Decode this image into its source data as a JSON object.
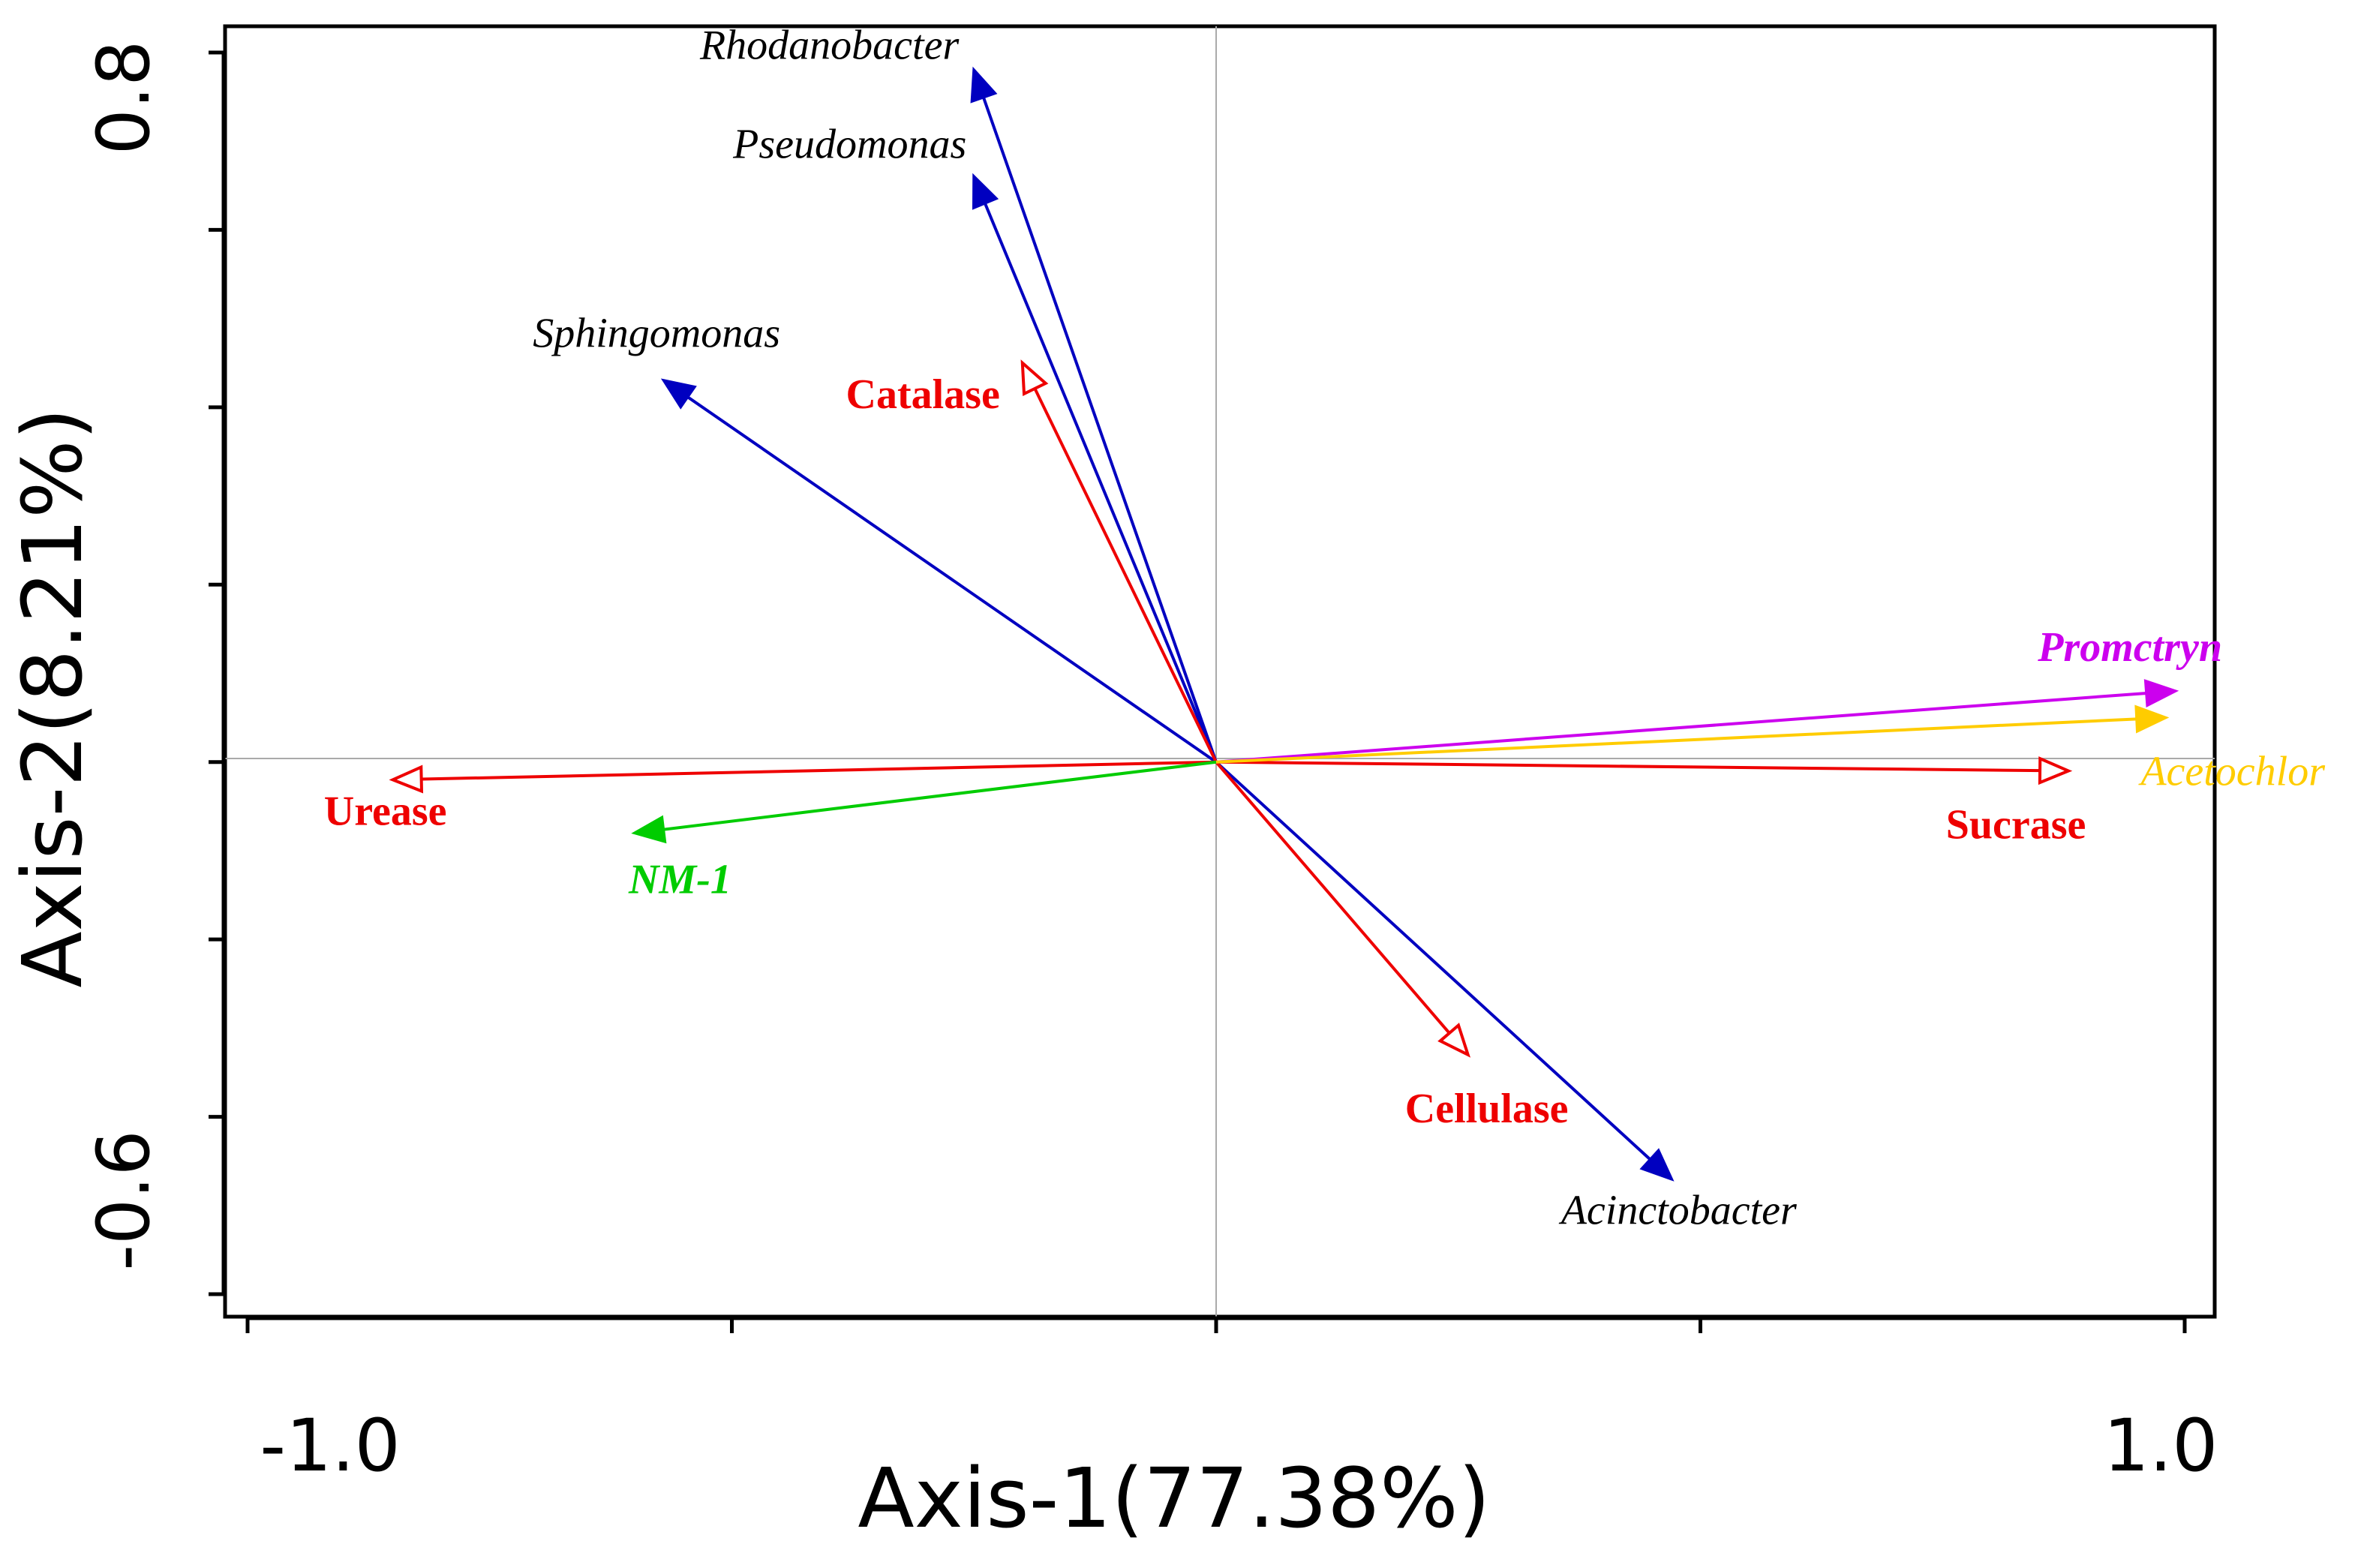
{
  "chart_data": {
    "type": "biplot",
    "xlabel": "Axis-1(77.38%)",
    "ylabel": "Axis-2(8.21%)",
    "xlim": [
      -1.0,
      1.0
    ],
    "ylim": [
      -0.6,
      0.8
    ],
    "x_tick_labels": [
      "-1.0",
      "1.0"
    ],
    "y_tick_labels": [
      "0.8",
      "-0.6"
    ],
    "x_ticks": [
      -1.0,
      -0.5,
      0.0,
      0.5,
      1.0
    ],
    "y_ticks": [
      -0.6,
      -0.4,
      -0.2,
      0.0,
      0.2,
      0.4,
      0.6,
      0.8
    ],
    "vectors": [
      {
        "name": "Rhodanobacter",
        "x": -0.25,
        "y": 0.78,
        "color": "#0000c0",
        "head": "filled",
        "label_style": "italic",
        "label_color": "#000000"
      },
      {
        "name": "Pseudomonas",
        "x": -0.25,
        "y": 0.66,
        "color": "#0000c0",
        "head": "filled",
        "label_style": "italic",
        "label_color": "#000000"
      },
      {
        "name": "Sphingomonas",
        "x": -0.57,
        "y": 0.43,
        "color": "#0000c0",
        "head": "filled",
        "label_style": "italic",
        "label_color": "#000000"
      },
      {
        "name": "Acinctobacter",
        "x": 0.47,
        "y": -0.47,
        "color": "#0000c0",
        "head": "filled",
        "label_style": "italic",
        "label_color": "#000000"
      },
      {
        "name": "Catalase",
        "x": -0.2,
        "y": 0.45,
        "color": "#ee0000",
        "head": "open",
        "label_style": "bold",
        "label_color": "#ee0000"
      },
      {
        "name": "Urease",
        "x": -0.85,
        "y": -0.02,
        "color": "#ee0000",
        "head": "open",
        "label_style": "bold",
        "label_color": "#ee0000"
      },
      {
        "name": "Sucrase",
        "x": 0.88,
        "y": -0.01,
        "color": "#ee0000",
        "head": "open",
        "label_style": "bold",
        "label_color": "#ee0000"
      },
      {
        "name": "Cellulase",
        "x": 0.26,
        "y": -0.33,
        "color": "#ee0000",
        "head": "open",
        "label_style": "bold",
        "label_color": "#ee0000"
      },
      {
        "name": "NM-1",
        "x": -0.6,
        "y": -0.08,
        "color": "#00cc00",
        "head": "filled",
        "label_style": "italic-bold",
        "label_color": "#00cc00"
      },
      {
        "name": "Promctryn",
        "x": 0.99,
        "y": 0.08,
        "color": "#cc00ee",
        "head": "filled",
        "label_style": "italic-bold",
        "label_color": "#cc00ee"
      },
      {
        "name": "Acetochlor",
        "x": 0.98,
        "y": 0.05,
        "color": "#ffcc00",
        "head": "filled",
        "label_style": "italic",
        "label_color": "#ffcc00"
      }
    ]
  }
}
